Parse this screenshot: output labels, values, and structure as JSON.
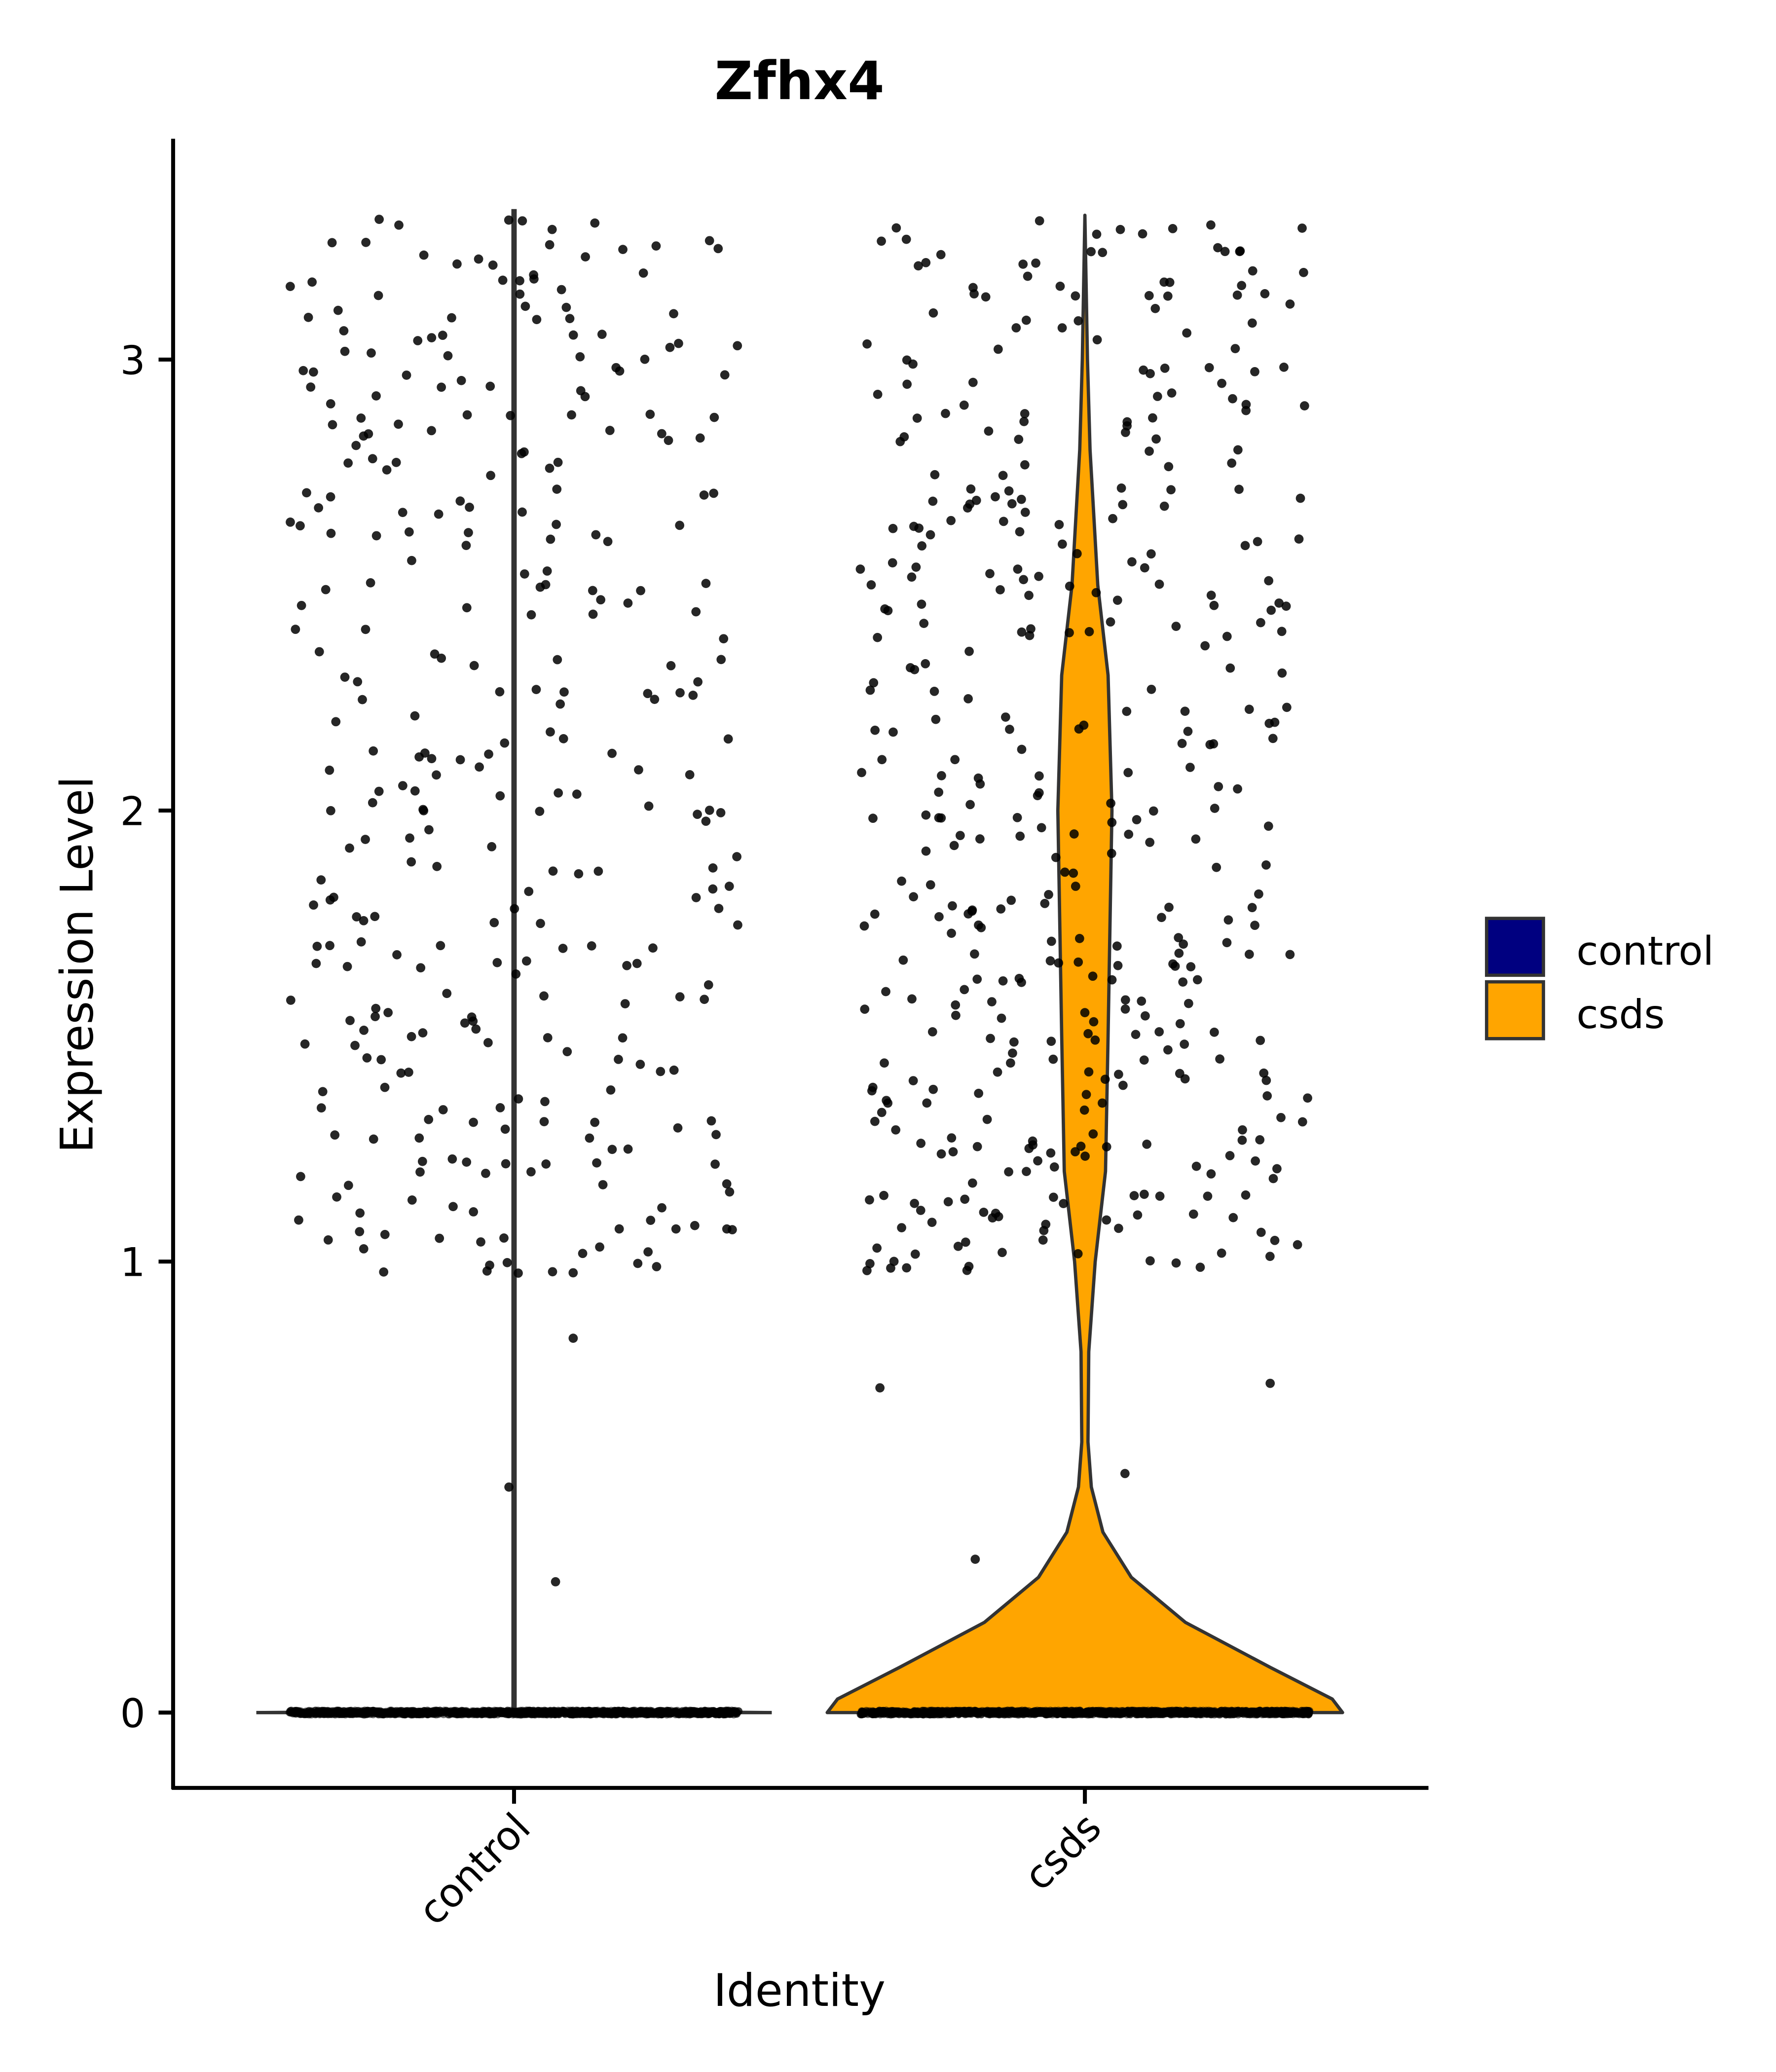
{
  "chart_data": {
    "type": "violin",
    "title": "Zfhx4",
    "xlabel": "Identity",
    "ylabel": "Expression Level",
    "categories": [
      "control",
      "csds"
    ],
    "yticks": [
      0,
      1,
      2,
      3
    ],
    "ytick_labels": [
      "0",
      "1",
      "2",
      "3"
    ],
    "ylim": [
      -0.17,
      3.5
    ],
    "legend": {
      "placement": "right",
      "entries": [
        {
          "label": "control",
          "color": "#000080"
        },
        {
          "label": "csds",
          "color": "#FFA500"
        }
      ]
    },
    "violins": [
      {
        "group": "control",
        "color": "#000080",
        "max": 3.33,
        "density_profile": [
          [
            0,
            1.0
          ],
          [
            0.004,
            0.004
          ],
          [
            3.33,
            0.004
          ]
        ]
      },
      {
        "group": "csds",
        "color": "#FFA500",
        "max": 3.32,
        "density_profile": [
          [
            0,
            1.0
          ],
          [
            0.03,
            0.96
          ],
          [
            0.1,
            0.72
          ],
          [
            0.2,
            0.39
          ],
          [
            0.3,
            0.18
          ],
          [
            0.4,
            0.07
          ],
          [
            0.5,
            0.025
          ],
          [
            0.6,
            0.012
          ],
          [
            0.8,
            0.015
          ],
          [
            1.0,
            0.04
          ],
          [
            1.2,
            0.08
          ],
          [
            1.5,
            0.09
          ],
          [
            2.0,
            0.105
          ],
          [
            2.3,
            0.09
          ],
          [
            2.5,
            0.05
          ],
          [
            2.8,
            0.02
          ],
          [
            3.0,
            0.01
          ],
          [
            3.32,
            0
          ]
        ]
      }
    ],
    "points": [
      {
        "group": "control",
        "n_zero": 1400,
        "n_nonzero": 330,
        "nonzero_range": [
          0.29,
          3.32
        ],
        "outliers": [
          0.29,
          0.5,
          0.83
        ]
      },
      {
        "group": "csds",
        "n_zero": 1300,
        "n_nonzero": 420,
        "nonzero_range": [
          0.34,
          3.32
        ],
        "outliers": [
          0.34,
          0.53,
          0.72,
          0.73
        ]
      }
    ]
  }
}
